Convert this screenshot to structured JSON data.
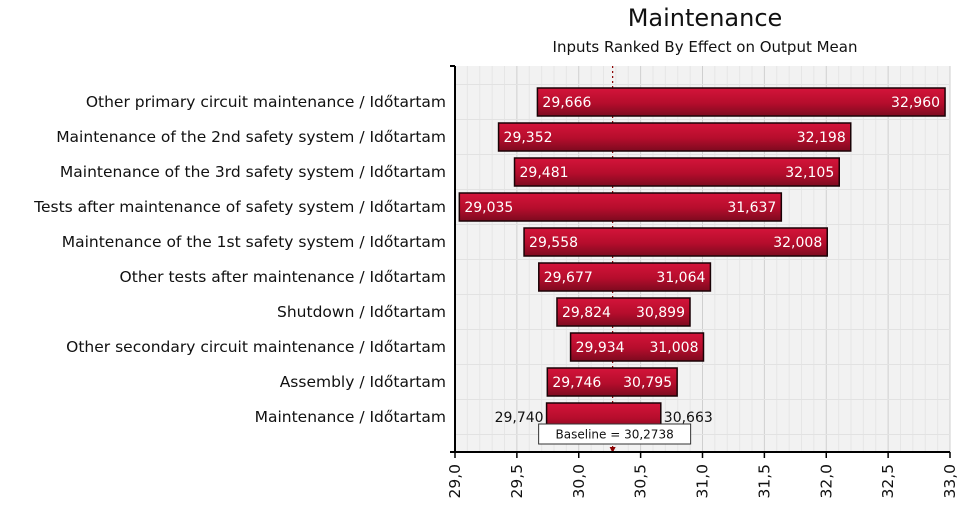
{
  "chart_data": {
    "type": "bar",
    "subtype": "tornado",
    "title": "Maintenance",
    "subtitle": "Inputs Ranked By Effect on Output Mean",
    "xlabel": "",
    "ylabel": "",
    "xlim": [
      29.0,
      33.0
    ],
    "x_ticks": [
      "29,0",
      "29,5",
      "30,0",
      "30,5",
      "31,0",
      "31,5",
      "32,0",
      "32,5",
      "33,0"
    ],
    "baseline": {
      "value": 30.2738,
      "label": "Baseline = 30,2738"
    },
    "grid": true,
    "categories": [
      "Other primary circuit maintenance / Időtartam",
      "Maintenance of the 2nd safety system / Időtartam",
      "Maintenance of the 3rd safety system / Időtartam",
      "Tests after maintenance of safety system / Időtartam",
      "Maintenance of the 1st safety system / Időtartam",
      "Other tests after maintenance / Időtartam",
      "Shutdown / Időtartam",
      "Other secondary circuit maintenance / Időtartam",
      "Assembly / Időtartam",
      "Maintenance / Időtartam"
    ],
    "low": [
      29.666,
      29.352,
      29.481,
      29.035,
      29.558,
      29.677,
      29.824,
      29.934,
      29.746,
      29.74
    ],
    "high": [
      32.96,
      32.198,
      32.105,
      31.637,
      32.008,
      31.064,
      30.899,
      31.008,
      30.795,
      30.663
    ],
    "low_labels": [
      "29,666",
      "29,352",
      "29,481",
      "29,035",
      "29,558",
      "29,677",
      "29,824",
      "29,934",
      "29,746",
      "29,740"
    ],
    "high_labels": [
      "32,960",
      "32,198",
      "32,105",
      "31,637",
      "32,008",
      "31,064",
      "30,899",
      "31,008",
      "30,795",
      "30,663"
    ],
    "colors": {
      "bar": "#c8102e",
      "bar_dark": "#7a0a1c",
      "grid": "#d9d9d9",
      "plot_bg": "#f2f2f2",
      "baseline": "#8b0000"
    }
  }
}
